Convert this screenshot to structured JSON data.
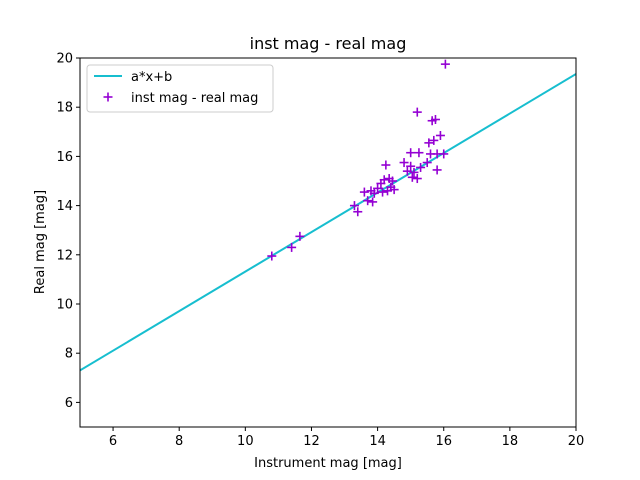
{
  "chart_data": {
    "type": "scatter",
    "title": "inst mag - real mag",
    "xlabel": "Instrument mag [mag]",
    "ylabel": "Real mag [mag]",
    "xlim": [
      5,
      20
    ],
    "ylim": [
      5,
      20
    ],
    "xticks": [
      6,
      8,
      10,
      12,
      14,
      16,
      18,
      20
    ],
    "yticks": [
      6,
      8,
      10,
      12,
      14,
      16,
      18,
      20
    ],
    "grid": false,
    "legend_position": "upper-left",
    "series": [
      {
        "name": "a*x+b",
        "kind": "line",
        "color": "#17becf",
        "x": [
          5,
          20
        ],
        "y": [
          7.3,
          19.35
        ]
      },
      {
        "name": "inst mag - real mag",
        "kind": "scatter",
        "marker": "+",
        "color": "#9400d3",
        "x": [
          10.8,
          11.4,
          11.65,
          13.3,
          13.4,
          13.6,
          13.7,
          13.8,
          13.85,
          13.9,
          14.0,
          14.1,
          14.15,
          14.2,
          14.25,
          14.3,
          14.35,
          14.4,
          14.45,
          14.5,
          14.8,
          14.9,
          15.0,
          15.0,
          15.05,
          15.1,
          15.2,
          15.2,
          15.25,
          15.3,
          15.5,
          15.55,
          15.6,
          15.65,
          15.7,
          15.75,
          15.8,
          15.8,
          15.9,
          16.0,
          16.05
        ],
        "y": [
          11.95,
          12.3,
          12.75,
          14.0,
          13.75,
          14.55,
          14.2,
          14.6,
          14.15,
          14.5,
          14.7,
          14.9,
          14.55,
          15.05,
          15.65,
          14.6,
          15.1,
          14.75,
          15.0,
          14.65,
          15.75,
          15.4,
          15.6,
          16.15,
          15.15,
          15.35,
          15.1,
          17.8,
          16.15,
          15.55,
          15.75,
          16.55,
          16.1,
          17.45,
          16.65,
          17.5,
          16.1,
          15.45,
          16.85,
          16.1,
          19.75
        ]
      }
    ]
  }
}
